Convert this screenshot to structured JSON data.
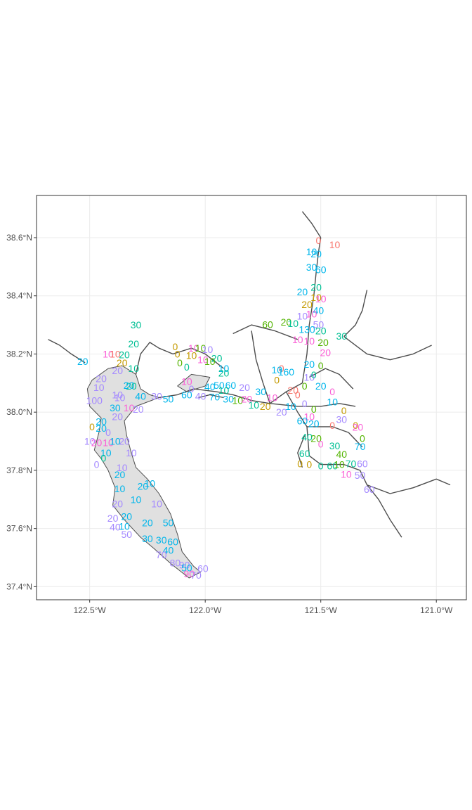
{
  "map": {
    "x_axis": {
      "ticks": [
        {
          "lon": -122.5,
          "label": "122.5°W"
        },
        {
          "lon": -122.0,
          "label": "122.0°W"
        },
        {
          "lon": -121.5,
          "label": "121.5°W"
        },
        {
          "lon": -121.0,
          "label": "121.0°W"
        }
      ]
    },
    "y_axis": {
      "ticks": [
        {
          "lat": 38.6,
          "label": "38.6°N"
        },
        {
          "lat": 38.4,
          "label": "38.4°N"
        },
        {
          "lat": 38.2,
          "label": "38.2°N"
        },
        {
          "lat": 38.0,
          "label": "38.0°N"
        },
        {
          "lat": 37.8,
          "label": "37.8°N"
        },
        {
          "lat": 37.6,
          "label": "37.6°N"
        },
        {
          "lat": 37.4,
          "label": "37.4°N"
        }
      ]
    },
    "lon_range": [
      -122.73,
      -120.87
    ],
    "lat_range": [
      37.355,
      38.745
    ],
    "grid": true,
    "legend": "none"
  },
  "colors": {
    "panel_border": "#333333",
    "grid": "#ebebeb",
    "coastline": "#4d4d4d",
    "bay_fill": "#e0e0e0",
    "palette": [
      "#F8766D",
      "#C49A00",
      "#53B400",
      "#00C094",
      "#00B6EB",
      "#A58AFF",
      "#FB61D7"
    ]
  },
  "chart_data": {
    "type": "scatter",
    "title": "",
    "xlabel": "",
    "ylabel": "",
    "xlim": [
      -122.73,
      -120.87
    ],
    "ylim": [
      37.355,
      38.745
    ],
    "grid": true,
    "labels": [
      {
        "lon": -121.44,
        "lat": 38.576,
        "text": "10",
        "c": 0
      },
      {
        "lon": -121.51,
        "lat": 38.59,
        "text": "0",
        "c": 0
      },
      {
        "lon": -121.54,
        "lat": 38.552,
        "text": "10",
        "c": 4
      },
      {
        "lon": -121.52,
        "lat": 38.544,
        "text": "20",
        "c": 4
      },
      {
        "lon": -121.54,
        "lat": 38.498,
        "text": "30",
        "c": 4
      },
      {
        "lon": -121.5,
        "lat": 38.49,
        "text": "60",
        "c": 4
      },
      {
        "lon": -121.52,
        "lat": 38.43,
        "text": "20",
        "c": 3
      },
      {
        "lon": -121.58,
        "lat": 38.414,
        "text": "20",
        "c": 4
      },
      {
        "lon": -121.52,
        "lat": 38.395,
        "text": "10",
        "c": 1
      },
      {
        "lon": -121.5,
        "lat": 38.39,
        "text": "10",
        "c": 6
      },
      {
        "lon": -121.56,
        "lat": 38.37,
        "text": "20",
        "c": 1
      },
      {
        "lon": -121.51,
        "lat": 38.35,
        "text": "40",
        "c": 4
      },
      {
        "lon": -121.58,
        "lat": 38.33,
        "text": "10",
        "c": 5
      },
      {
        "lon": -121.54,
        "lat": 38.338,
        "text": "10",
        "c": 6
      },
      {
        "lon": -121.65,
        "lat": 38.31,
        "text": "20",
        "c": 2
      },
      {
        "lon": -121.62,
        "lat": 38.305,
        "text": "10",
        "c": 3
      },
      {
        "lon": -121.73,
        "lat": 38.302,
        "text": "60",
        "c": 2
      },
      {
        "lon": -121.51,
        "lat": 38.302,
        "text": "50",
        "c": 5
      },
      {
        "lon": -121.56,
        "lat": 38.285,
        "text": "130",
        "c": 4
      },
      {
        "lon": -121.5,
        "lat": 38.28,
        "text": "20",
        "c": 3
      },
      {
        "lon": -121.41,
        "lat": 38.262,
        "text": "30",
        "c": 3
      },
      {
        "lon": -121.6,
        "lat": 38.25,
        "text": "10",
        "c": 6
      },
      {
        "lon": -121.55,
        "lat": 38.245,
        "text": "10",
        "c": 6
      },
      {
        "lon": -121.49,
        "lat": 38.24,
        "text": "20",
        "c": 2
      },
      {
        "lon": -121.48,
        "lat": 38.205,
        "text": "20",
        "c": 6
      },
      {
        "lon": -121.55,
        "lat": 38.165,
        "text": "20",
        "c": 4
      },
      {
        "lon": -121.5,
        "lat": 38.16,
        "text": "0",
        "c": 2
      },
      {
        "lon": -121.67,
        "lat": 38.15,
        "text": "0",
        "c": 0
      },
      {
        "lon": -121.69,
        "lat": 38.145,
        "text": "10",
        "c": 4
      },
      {
        "lon": -121.65,
        "lat": 38.138,
        "text": "160",
        "c": 4
      },
      {
        "lon": -121.55,
        "lat": 38.12,
        "text": "10",
        "c": 5
      },
      {
        "lon": -121.53,
        "lat": 38.128,
        "text": "0",
        "c": 3
      },
      {
        "lon": -121.69,
        "lat": 38.11,
        "text": "0",
        "c": 1
      },
      {
        "lon": -121.57,
        "lat": 38.09,
        "text": "0",
        "c": 2
      },
      {
        "lon": -121.5,
        "lat": 38.09,
        "text": "20",
        "c": 4
      },
      {
        "lon": -121.62,
        "lat": 38.075,
        "text": "20",
        "c": 0
      },
      {
        "lon": -121.45,
        "lat": 38.07,
        "text": "0",
        "c": 6
      },
      {
        "lon": -121.6,
        "lat": 38.06,
        "text": "0",
        "c": 0
      },
      {
        "lon": -121.45,
        "lat": 38.035,
        "text": "10",
        "c": 4
      },
      {
        "lon": -121.57,
        "lat": 38.03,
        "text": "0",
        "c": 5
      },
      {
        "lon": -121.63,
        "lat": 38.02,
        "text": "10",
        "c": 4
      },
      {
        "lon": -121.53,
        "lat": 38.01,
        "text": "0",
        "c": 2
      },
      {
        "lon": -121.4,
        "lat": 38.005,
        "text": "0",
        "c": 1
      },
      {
        "lon": -121.67,
        "lat": 38.0,
        "text": "20",
        "c": 5
      },
      {
        "lon": -121.55,
        "lat": 37.985,
        "text": "10",
        "c": 6
      },
      {
        "lon": -121.41,
        "lat": 37.975,
        "text": "30",
        "c": 5
      },
      {
        "lon": -121.58,
        "lat": 37.97,
        "text": "60",
        "c": 4
      },
      {
        "lon": -121.53,
        "lat": 37.96,
        "text": "20",
        "c": 4
      },
      {
        "lon": -121.45,
        "lat": 37.955,
        "text": "0",
        "c": 0
      },
      {
        "lon": -121.35,
        "lat": 37.955,
        "text": "0",
        "c": 1
      },
      {
        "lon": -121.34,
        "lat": 37.948,
        "text": "20",
        "c": 6
      },
      {
        "lon": -121.32,
        "lat": 37.91,
        "text": "0",
        "c": 2
      },
      {
        "lon": -121.56,
        "lat": 37.915,
        "text": "40",
        "c": 3
      },
      {
        "lon": -121.52,
        "lat": 37.91,
        "text": "20",
        "c": 2
      },
      {
        "lon": -121.5,
        "lat": 37.89,
        "text": "0",
        "c": 6
      },
      {
        "lon": -121.44,
        "lat": 37.884,
        "text": "30",
        "c": 3
      },
      {
        "lon": -121.33,
        "lat": 37.882,
        "text": "70",
        "c": 4
      },
      {
        "lon": -121.57,
        "lat": 37.858,
        "text": "60",
        "c": 3
      },
      {
        "lon": -121.41,
        "lat": 37.855,
        "text": "40",
        "c": 2
      },
      {
        "lon": -121.59,
        "lat": 37.823,
        "text": "0",
        "c": 1
      },
      {
        "lon": -121.55,
        "lat": 37.82,
        "text": "0",
        "c": 1
      },
      {
        "lon": -121.5,
        "lat": 37.815,
        "text": "0",
        "c": 3
      },
      {
        "lon": -121.45,
        "lat": 37.815,
        "text": "60",
        "c": 3
      },
      {
        "lon": -121.42,
        "lat": 37.82,
        "text": "10",
        "c": 2
      },
      {
        "lon": -121.37,
        "lat": 37.823,
        "text": "70",
        "c": 3
      },
      {
        "lon": -121.32,
        "lat": 37.823,
        "text": "60",
        "c": 5
      },
      {
        "lon": -121.39,
        "lat": 37.787,
        "text": "10",
        "c": 6
      },
      {
        "lon": -121.33,
        "lat": 37.783,
        "text": "50",
        "c": 5
      },
      {
        "lon": -121.29,
        "lat": 37.735,
        "text": "60",
        "c": 5
      },
      {
        "lon": -122.3,
        "lat": 38.3,
        "text": "30",
        "c": 3
      },
      {
        "lon": -122.31,
        "lat": 38.235,
        "text": "20",
        "c": 3
      },
      {
        "lon": -122.53,
        "lat": 38.175,
        "text": "20",
        "c": 4
      },
      {
        "lon": -122.42,
        "lat": 38.2,
        "text": "10",
        "c": 6
      },
      {
        "lon": -122.39,
        "lat": 38.2,
        "text": "10",
        "c": 0
      },
      {
        "lon": -122.35,
        "lat": 38.197,
        "text": "20",
        "c": 3
      },
      {
        "lon": -122.36,
        "lat": 38.17,
        "text": "20",
        "c": 1
      },
      {
        "lon": -122.31,
        "lat": 38.15,
        "text": "10",
        "c": 3
      },
      {
        "lon": -122.38,
        "lat": 38.143,
        "text": "20",
        "c": 5
      },
      {
        "lon": -122.45,
        "lat": 38.115,
        "text": "20",
        "c": 5
      },
      {
        "lon": -122.32,
        "lat": 38.09,
        "text": "20",
        "c": 3
      },
      {
        "lon": -122.46,
        "lat": 38.085,
        "text": "10",
        "c": 5
      },
      {
        "lon": -122.33,
        "lat": 38.092,
        "text": "20",
        "c": 4
      },
      {
        "lon": -122.38,
        "lat": 38.06,
        "text": "10",
        "c": 5
      },
      {
        "lon": -122.37,
        "lat": 38.05,
        "text": "10",
        "c": 5
      },
      {
        "lon": -122.28,
        "lat": 38.055,
        "text": "40",
        "c": 4
      },
      {
        "lon": -122.21,
        "lat": 38.055,
        "text": "30",
        "c": 5
      },
      {
        "lon": -122.16,
        "lat": 38.045,
        "text": "50",
        "c": 4
      },
      {
        "lon": -122.48,
        "lat": 38.04,
        "text": "100",
        "c": 5
      },
      {
        "lon": -122.39,
        "lat": 38.015,
        "text": "30",
        "c": 4
      },
      {
        "lon": -122.33,
        "lat": 38.015,
        "text": "10",
        "c": 6
      },
      {
        "lon": -122.29,
        "lat": 38.01,
        "text": "20",
        "c": 5
      },
      {
        "lon": -122.38,
        "lat": 37.985,
        "text": "20",
        "c": 5
      },
      {
        "lon": -122.45,
        "lat": 37.968,
        "text": "20",
        "c": 4
      },
      {
        "lon": -122.49,
        "lat": 37.95,
        "text": "0",
        "c": 1
      },
      {
        "lon": -122.45,
        "lat": 37.945,
        "text": "20",
        "c": 4
      },
      {
        "lon": -122.42,
        "lat": 37.93,
        "text": "0",
        "c": 5
      },
      {
        "lon": -122.5,
        "lat": 37.9,
        "text": "10",
        "c": 5
      },
      {
        "lon": -122.47,
        "lat": 37.895,
        "text": "20",
        "c": 6
      },
      {
        "lon": -122.42,
        "lat": 37.895,
        "text": "10",
        "c": 6
      },
      {
        "lon": -122.39,
        "lat": 37.9,
        "text": "10",
        "c": 4
      },
      {
        "lon": -122.35,
        "lat": 37.9,
        "text": "20",
        "c": 5
      },
      {
        "lon": -122.43,
        "lat": 37.86,
        "text": "10",
        "c": 4
      },
      {
        "lon": -122.32,
        "lat": 37.86,
        "text": "10",
        "c": 5
      },
      {
        "lon": -122.44,
        "lat": 37.842,
        "text": "0",
        "c": 3
      },
      {
        "lon": -122.47,
        "lat": 37.82,
        "text": "0",
        "c": 5
      },
      {
        "lon": -122.36,
        "lat": 37.81,
        "text": "10",
        "c": 5
      },
      {
        "lon": -122.37,
        "lat": 37.785,
        "text": "20",
        "c": 4
      },
      {
        "lon": -122.24,
        "lat": 37.755,
        "text": "10",
        "c": 4
      },
      {
        "lon": -122.27,
        "lat": 37.745,
        "text": "20",
        "c": 4
      },
      {
        "lon": -122.37,
        "lat": 37.737,
        "text": "10",
        "c": 4
      },
      {
        "lon": -122.3,
        "lat": 37.7,
        "text": "10",
        "c": 4
      },
      {
        "lon": -122.21,
        "lat": 37.685,
        "text": "10",
        "c": 5
      },
      {
        "lon": -122.38,
        "lat": 37.685,
        "text": "20",
        "c": 5
      },
      {
        "lon": -122.4,
        "lat": 37.635,
        "text": "20",
        "c": 5
      },
      {
        "lon": -122.34,
        "lat": 37.642,
        "text": "20",
        "c": 4
      },
      {
        "lon": -122.25,
        "lat": 37.62,
        "text": "20",
        "c": 4
      },
      {
        "lon": -122.16,
        "lat": 37.62,
        "text": "50",
        "c": 4
      },
      {
        "lon": -122.39,
        "lat": 37.605,
        "text": "40",
        "c": 5
      },
      {
        "lon": -122.35,
        "lat": 37.608,
        "text": "10",
        "c": 4
      },
      {
        "lon": -122.34,
        "lat": 37.58,
        "text": "50",
        "c": 5
      },
      {
        "lon": -122.25,
        "lat": 37.565,
        "text": "30",
        "c": 4
      },
      {
        "lon": -122.19,
        "lat": 37.56,
        "text": "30",
        "c": 4
      },
      {
        "lon": -122.14,
        "lat": 37.555,
        "text": "60",
        "c": 4
      },
      {
        "lon": -122.16,
        "lat": 37.525,
        "text": "40",
        "c": 4
      },
      {
        "lon": -122.19,
        "lat": 37.51,
        "text": "70",
        "c": 5
      },
      {
        "lon": -122.13,
        "lat": 37.482,
        "text": "80",
        "c": 5
      },
      {
        "lon": -122.09,
        "lat": 37.475,
        "text": "90",
        "c": 5
      },
      {
        "lon": -122.08,
        "lat": 37.465,
        "text": "50",
        "c": 4
      },
      {
        "lon": -122.01,
        "lat": 37.463,
        "text": "60",
        "c": 5
      },
      {
        "lon": -122.07,
        "lat": 37.445,
        "text": "90",
        "c": 6
      },
      {
        "lon": -122.04,
        "lat": 37.44,
        "text": "70",
        "c": 5
      },
      {
        "lon": -122.13,
        "lat": 38.225,
        "text": "0",
        "c": 1
      },
      {
        "lon": -122.05,
        "lat": 38.22,
        "text": "10",
        "c": 6
      },
      {
        "lon": -122.02,
        "lat": 38.22,
        "text": "10",
        "c": 2
      },
      {
        "lon": -121.99,
        "lat": 38.215,
        "text": "10",
        "c": 5
      },
      {
        "lon": -122.12,
        "lat": 38.2,
        "text": "0",
        "c": 1
      },
      {
        "lon": -122.06,
        "lat": 38.195,
        "text": "10",
        "c": 1
      },
      {
        "lon": -122.01,
        "lat": 38.18,
        "text": "10",
        "c": 6
      },
      {
        "lon": -121.95,
        "lat": 38.185,
        "text": "20",
        "c": 3
      },
      {
        "lon": -121.98,
        "lat": 38.175,
        "text": "10",
        "c": 2
      },
      {
        "lon": -122.11,
        "lat": 38.17,
        "text": "0",
        "c": 2
      },
      {
        "lon": -122.08,
        "lat": 38.155,
        "text": "0",
        "c": 3
      },
      {
        "lon": -121.92,
        "lat": 38.15,
        "text": "10",
        "c": 4
      },
      {
        "lon": -121.92,
        "lat": 38.135,
        "text": "20",
        "c": 3
      },
      {
        "lon": -122.08,
        "lat": 38.105,
        "text": "10",
        "c": 6
      },
      {
        "lon": -122.06,
        "lat": 38.08,
        "text": "0",
        "c": 5
      },
      {
        "lon": -121.94,
        "lat": 38.092,
        "text": "50",
        "c": 4
      },
      {
        "lon": -121.89,
        "lat": 38.092,
        "text": "60",
        "c": 4
      },
      {
        "lon": -121.98,
        "lat": 38.088,
        "text": "40",
        "c": 4
      },
      {
        "lon": -121.92,
        "lat": 38.075,
        "text": "10",
        "c": 3
      },
      {
        "lon": -121.83,
        "lat": 38.085,
        "text": "20",
        "c": 5
      },
      {
        "lon": -122.08,
        "lat": 38.06,
        "text": "60",
        "c": 4
      },
      {
        "lon": -122.02,
        "lat": 38.055,
        "text": "40",
        "c": 5
      },
      {
        "lon": -121.96,
        "lat": 38.052,
        "text": "70",
        "c": 4
      },
      {
        "lon": -121.9,
        "lat": 38.045,
        "text": "30",
        "c": 4
      },
      {
        "lon": -121.86,
        "lat": 38.04,
        "text": "10",
        "c": 2
      },
      {
        "lon": -121.82,
        "lat": 38.045,
        "text": "20",
        "c": 6
      },
      {
        "lon": -121.76,
        "lat": 38.07,
        "text": "30",
        "c": 4
      },
      {
        "lon": -121.79,
        "lat": 38.025,
        "text": "10",
        "c": 3
      },
      {
        "lon": -121.74,
        "lat": 38.02,
        "text": "20",
        "c": 1
      },
      {
        "lon": -121.71,
        "lat": 38.05,
        "text": "10",
        "c": 6
      }
    ]
  }
}
